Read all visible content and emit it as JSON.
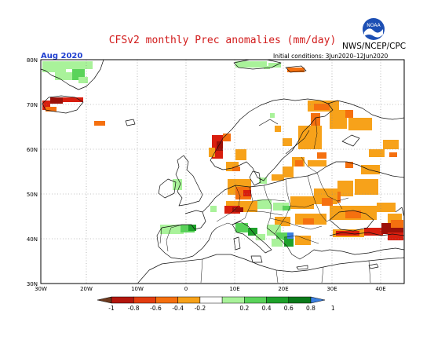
{
  "header": {
    "title": "CFSv2 monthly Prec anomalies (mm/day)",
    "agency": "NWS/NCEP/CPC",
    "logo_text": "NOAA",
    "period": "Aug 2020",
    "initial_conditions": "Initial conditions: 3Jun2020–12Jun2020"
  },
  "map": {
    "lat_labels": [
      "80N",
      "70N",
      "60N",
      "50N",
      "40N",
      "30N"
    ],
    "lon_labels": [
      "30W",
      "20W",
      "10W",
      "0",
      "10E",
      "20E",
      "30E",
      "40E"
    ]
  },
  "colorbar": {
    "labels": [
      "-1",
      "-0.8",
      "-0.6",
      "-0.4",
      "-0.2",
      "0.2",
      "0.4",
      "0.6",
      "0.8",
      "1"
    ],
    "colors": [
      "#6e3a1f",
      "#b3160c",
      "#e33c0f",
      "#f5700f",
      "#f7a21a",
      "#ffffff",
      "#a9f29a",
      "#5ad35a",
      "#1ea12a",
      "#0a7a1a",
      "#3a7fe0"
    ]
  },
  "anomaly_colors": {
    "light_orange": "#f7a21a",
    "orange": "#f5700f",
    "red": "#d81e0e",
    "dark_red": "#9c1008",
    "light_green": "#a9f29a",
    "green": "#5ad35a",
    "dark_green": "#1ea12a",
    "blue": "#3a7fe0"
  }
}
